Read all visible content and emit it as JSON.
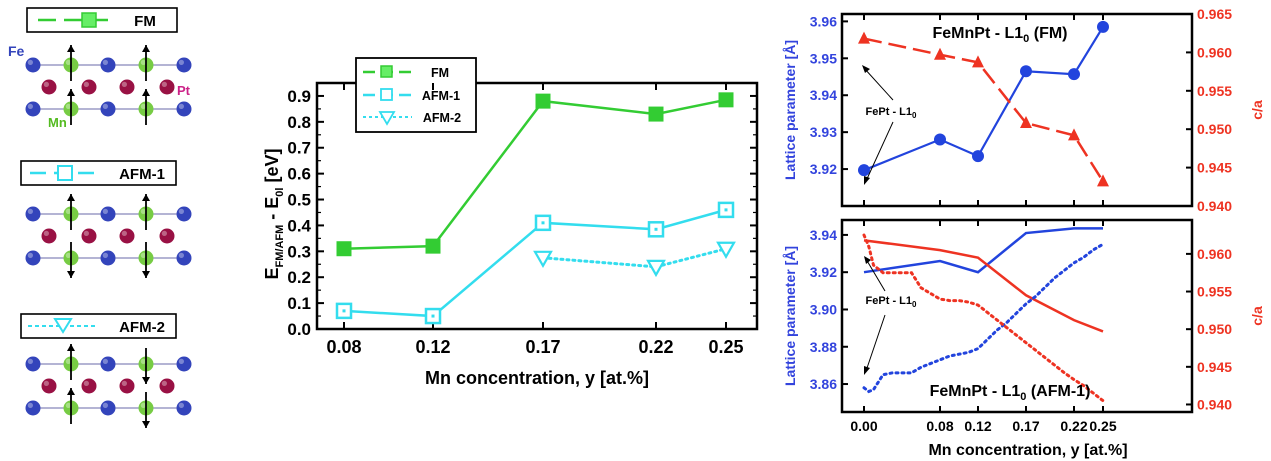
{
  "colors": {
    "fm": "#33cc33",
    "fm_fill": "#66ee66",
    "afm": "#33ddee",
    "blue": "#2244dd",
    "red": "#ee3322",
    "fe_atom": "#3344bb",
    "pt_atom": "#991144",
    "mn_atom": "#77cc44"
  },
  "structures": {
    "fm_label": "FM",
    "afm1_label": "AFM-1",
    "afm2_label": "AFM-2",
    "fe_label": "Fe",
    "mn_label": "Mn",
    "pt_label": "Pt"
  },
  "chart_data": [
    {
      "type": "line",
      "xlabel": "Mn concentration, y [at.%]",
      "ylabel": "E_FM/AFM - E_0l [eV]",
      "categories": [
        "0.08",
        "0.12",
        "0.17",
        "0.22",
        "0.25"
      ],
      "x": [
        0.08,
        0.12,
        0.17,
        0.22,
        0.25
      ],
      "ylim": [
        0.0,
        0.95
      ],
      "yticks": [
        "0.0",
        "0.1",
        "0.2",
        "0.3",
        "0.4",
        "0.5",
        "0.6",
        "0.7",
        "0.8",
        "0.9"
      ],
      "legend": "top-left",
      "series": [
        {
          "name": "FM",
          "marker": "filled-square",
          "line": "solid",
          "values": [
            0.31,
            0.32,
            0.88,
            0.83,
            0.885
          ]
        },
        {
          "name": "AFM-1",
          "marker": "open-square",
          "line": "solid",
          "values": [
            0.07,
            0.05,
            0.41,
            0.385,
            0.46
          ]
        },
        {
          "name": "AFM-2",
          "marker": "open-triangle",
          "line": "dotted",
          "x": [
            0.17,
            0.22,
            0.25
          ],
          "values": [
            0.275,
            0.24,
            0.31
          ]
        }
      ]
    },
    {
      "type": "line",
      "title": "FeMnPt - L1₀ (FM)",
      "ylabel_left": "Lattice parameter [Å]",
      "ylabel_right": "c/a",
      "x": [
        0.0,
        0.08,
        0.12,
        0.17,
        0.22,
        0.25
      ],
      "ylim_left": [
        3.91,
        3.962
      ],
      "ylim_right": [
        0.94,
        0.965
      ],
      "yticks_left": [
        "3.92",
        "3.93",
        "3.94",
        "3.95",
        "3.96"
      ],
      "yticks_right": [
        "0.940",
        "0.945",
        "0.950",
        "0.955",
        "0.960",
        "0.965"
      ],
      "annotation": "FePt - L1₀",
      "series": [
        {
          "name": "Lattice parameter",
          "axis": "left",
          "values": [
            3.9197,
            3.928,
            3.9235,
            3.9465,
            3.9457,
            3.9585
          ]
        },
        {
          "name": "c/a",
          "axis": "right",
          "values": [
            0.9618,
            0.9597,
            0.9587,
            0.9508,
            0.9492,
            0.9432
          ]
        }
      ]
    },
    {
      "type": "line",
      "title": "FeMnPt - L1₀ (AFM-1)",
      "xlabel": "Mn concentration, y [at.%]",
      "ylabel_left": "Lattice parameter [Å]",
      "ylabel_right": "c/a",
      "xticks": [
        "0.00",
        "0.08",
        "0.12",
        "0.17",
        "0.22",
        "0.25"
      ],
      "ylim_left": [
        3.845,
        3.948
      ],
      "ylim_right": [
        0.939,
        0.9645
      ],
      "yticks_left": [
        "3.86",
        "3.88",
        "3.90",
        "3.92",
        "3.94"
      ],
      "yticks_right": [
        "0.940",
        "0.945",
        "0.950",
        "0.955",
        "0.960"
      ],
      "annotation": "FePt - L1₀",
      "series": [
        {
          "name": "Lattice parameter (solid)",
          "axis": "left",
          "line": "solid",
          "x": [
            0.0,
            0.08,
            0.12,
            0.17,
            0.22,
            0.25
          ],
          "values": [
            3.92,
            3.926,
            3.92,
            3.941,
            3.9435,
            3.9435
          ]
        },
        {
          "name": "c/a (solid)",
          "axis": "right",
          "line": "solid",
          "x": [
            0.0,
            0.08,
            0.12,
            0.17,
            0.22,
            0.25
          ],
          "values": [
            0.9618,
            0.9605,
            0.9595,
            0.9545,
            0.9512,
            0.9497
          ]
        },
        {
          "name": "Lattice parameter (dotted)",
          "axis": "left",
          "line": "dotted",
          "x": [
            0.0,
            0.005,
            0.01,
            0.02,
            0.03,
            0.05,
            0.06,
            0.08,
            0.09,
            0.1,
            0.11,
            0.12,
            0.13,
            0.14,
            0.15,
            0.16,
            0.17,
            0.18,
            0.19,
            0.2,
            0.21,
            0.22,
            0.23,
            0.24,
            0.25
          ],
          "values": [
            3.858,
            3.856,
            3.857,
            3.865,
            3.866,
            3.866,
            3.869,
            3.873,
            3.875,
            3.876,
            3.877,
            3.879,
            3.884,
            3.889,
            3.893,
            3.898,
            3.903,
            3.907,
            3.912,
            3.917,
            3.921,
            3.925,
            3.928,
            3.932,
            3.935
          ]
        },
        {
          "name": "c/a (dotted)",
          "axis": "right",
          "line": "dotted",
          "x": [
            0.0,
            0.005,
            0.01,
            0.02,
            0.03,
            0.05,
            0.06,
            0.08,
            0.09,
            0.1,
            0.11,
            0.12,
            0.13,
            0.14,
            0.15,
            0.16,
            0.17,
            0.18,
            0.19,
            0.2,
            0.21,
            0.22,
            0.23,
            0.24,
            0.25
          ],
          "values": [
            0.9625,
            0.961,
            0.9585,
            0.9575,
            0.9575,
            0.9575,
            0.9555,
            0.954,
            0.9538,
            0.9538,
            0.9536,
            0.9532,
            0.9522,
            0.9512,
            0.9502,
            0.9492,
            0.9482,
            0.9472,
            0.9462,
            0.9452,
            0.9442,
            0.9433,
            0.9425,
            0.9415,
            0.9405
          ]
        }
      ]
    }
  ]
}
